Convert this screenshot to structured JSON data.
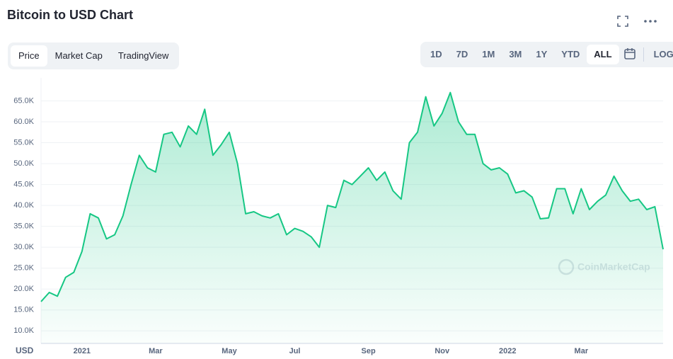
{
  "chart_data": {
    "type": "area",
    "title": "Bitcoin to USD Chart",
    "tabs": [
      "Price",
      "Market Cap",
      "TradingView"
    ],
    "active_tab": 0,
    "ranges": [
      "1D",
      "7D",
      "1M",
      "3M",
      "1Y",
      "YTD",
      "ALL"
    ],
    "active_range": 6,
    "log_button": "LOG",
    "currency": "USD",
    "watermark": "CoinMarketCap",
    "color": "#16c784",
    "grid": true,
    "categories": [
      null,
      null,
      null,
      null,
      null,
      "2021",
      null,
      null,
      null,
      null,
      null,
      null,
      null,
      null,
      "Mar",
      null,
      null,
      null,
      null,
      null,
      null,
      null,
      null,
      "May",
      null,
      null,
      null,
      null,
      null,
      null,
      null,
      "Jul",
      null,
      null,
      null,
      null,
      null,
      null,
      null,
      null,
      "Sep",
      null,
      null,
      null,
      null,
      null,
      null,
      null,
      null,
      "Nov",
      null,
      null,
      null,
      null,
      null,
      null,
      null,
      "2022",
      null,
      null,
      null,
      null,
      null,
      null,
      null,
      null,
      "Mar",
      null,
      null,
      null,
      null,
      null,
      null,
      null,
      null,
      null,
      null
    ],
    "values": [
      17000,
      19200,
      18300,
      22800,
      24000,
      29000,
      38000,
      37000,
      32000,
      33000,
      37500,
      45000,
      52000,
      49000,
      48000,
      57000,
      57500,
      54000,
      59000,
      57000,
      63000,
      52000,
      54500,
      57500,
      50000,
      38000,
      38500,
      37500,
      37000,
      38000,
      33000,
      34500,
      33800,
      32500,
      30000,
      40000,
      39500,
      46000,
      45000,
      47000,
      49000,
      46000,
      48000,
      43500,
      41500,
      55000,
      57500,
      66000,
      59000,
      62000,
      67000,
      60000,
      57000,
      57000,
      50000,
      48500,
      49000,
      47500,
      43000,
      43500,
      42000,
      36800,
      37000,
      44000,
      44000,
      38000,
      44000,
      39000,
      41000,
      42500,
      47000,
      43500,
      41000,
      41500,
      39000,
      39700,
      29500
    ],
    "ylim": [
      7000,
      70500
    ],
    "yticks": [
      {
        "value": 10000,
        "label": "10.0K"
      },
      {
        "value": 15000,
        "label": "15.0K"
      },
      {
        "value": 20000,
        "label": "20.0K"
      },
      {
        "value": 25000,
        "label": "25.0K"
      },
      {
        "value": 30000,
        "label": "30.0K"
      },
      {
        "value": 35000,
        "label": "35.0K"
      },
      {
        "value": 40000,
        "label": "40.0K"
      },
      {
        "value": 45000,
        "label": "45.0K"
      },
      {
        "value": 50000,
        "label": "50.0K"
      },
      {
        "value": 55000,
        "label": "55.0K"
      },
      {
        "value": 60000,
        "label": "60.0K"
      },
      {
        "value": 65000,
        "label": "65.0K"
      }
    ]
  }
}
